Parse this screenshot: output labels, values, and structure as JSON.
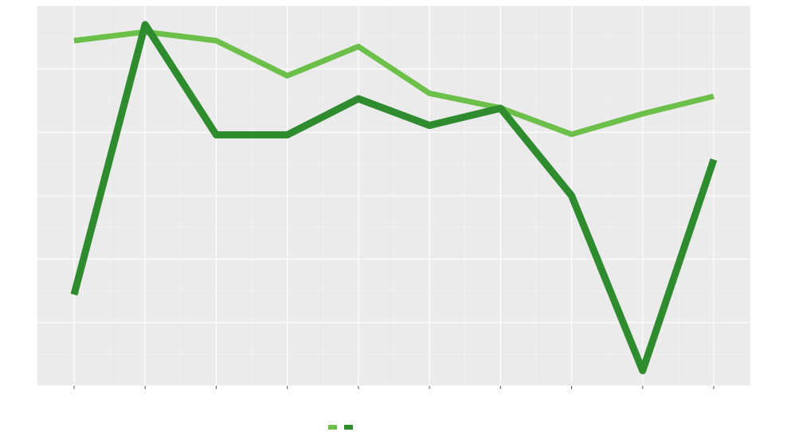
{
  "chart_data": {
    "type": "line",
    "title": "",
    "xlabel": "",
    "ylabel": "",
    "y2label": "",
    "x": [
      "",
      "",
      "",
      "",
      "",
      "",
      "",
      "",
      "",
      ""
    ],
    "series": [
      {
        "name": "",
        "axis": "left",
        "color": "#6cc04a",
        "values": [
          19.8,
          20.1,
          19.8,
          18.6,
          19.6,
          18.0,
          17.5,
          16.6,
          17.3,
          17.9
        ]
      },
      {
        "name": "",
        "axis": "right",
        "color": "#2e8b2e",
        "values": [
          6.8,
          21.0,
          15.2,
          15.2,
          17.1,
          15.7,
          16.6,
          12.0,
          2.8,
          13.9
        ]
      }
    ],
    "ylim": [
      8,
      21
    ],
    "y2lim": [
      2,
      22
    ],
    "y_ticks": [],
    "y2_ticks": [],
    "grid": true,
    "background": "#ebebeb",
    "legend_position": "bottom"
  }
}
